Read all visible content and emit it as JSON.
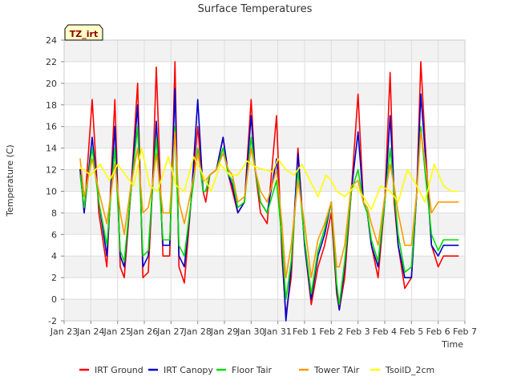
{
  "chart_data": {
    "type": "line",
    "title": "Surface Temperatures",
    "xlabel": "Time",
    "ylabel": "Temperature (C)",
    "site_label": "TZ_irt",
    "x_ticks": [
      "Jan 23",
      "Jan 24",
      "Jan 25",
      "Jan 26",
      "Jan 27",
      "Jan 28",
      "Jan 29",
      "Jan 30",
      "Jan 31",
      "Feb 1",
      "Feb 2",
      "Feb 3",
      "Feb 4",
      "Feb 5",
      "Feb 6",
      "Feb 7"
    ],
    "xlim": [
      0,
      15
    ],
    "ylim": [
      -2,
      24
    ],
    "y_ticks": [
      -2,
      0,
      2,
      4,
      6,
      8,
      10,
      12,
      14,
      16,
      18,
      20,
      22,
      24
    ],
    "grid": true,
    "legend_position": "bottom",
    "series": [
      {
        "name": "IRT Ground",
        "color": "#ff0000",
        "x": [
          0.6,
          0.75,
          1.05,
          1.3,
          1.6,
          1.9,
          2.1,
          2.25,
          2.5,
          2.75,
          2.95,
          3.15,
          3.3,
          3.45,
          3.7,
          3.95,
          4.15,
          4.3,
          4.5,
          4.75,
          5.0,
          5.2,
          5.3,
          5.45,
          5.7,
          5.95,
          6.15,
          6.3,
          6.5,
          6.75,
          7.0,
          7.15,
          7.35,
          7.6,
          7.95,
          8.15,
          8.3,
          8.5,
          8.75,
          9.0,
          9.25,
          9.5,
          9.75,
          10.0,
          10.2,
          10.3,
          10.5,
          10.75,
          11.0,
          11.2,
          11.35,
          11.5,
          11.75,
          12.0,
          12.2,
          12.35,
          12.5,
          12.75,
          13.0,
          13.2,
          13.35,
          13.5,
          13.75,
          14.0,
          14.2,
          14.35,
          14.5,
          14.75
        ],
        "y": [
          12.0,
          8.0,
          18.5,
          8.0,
          3.0,
          18.5,
          3.0,
          2.0,
          10.0,
          20.0,
          2.0,
          2.5,
          10.0,
          21.5,
          4.0,
          4.0,
          22.0,
          3.0,
          1.5,
          9.0,
          16.0,
          10.0,
          9.0,
          11.5,
          12.0,
          15.0,
          11.5,
          10.0,
          8.0,
          9.0,
          18.5,
          12.0,
          8.0,
          7.0,
          17.0,
          4.0,
          -1.5,
          2.0,
          14.0,
          5.0,
          -0.5,
          3.0,
          5.0,
          8.0,
          0.5,
          -1.0,
          2.0,
          10.0,
          19.0,
          9.0,
          8.0,
          5.0,
          2.0,
          9.0,
          21.0,
          9.0,
          5.0,
          1.0,
          2.0,
          10.0,
          22.0,
          15.0,
          5.0,
          3.0,
          4.0,
          4.0,
          4.0,
          4.0
        ]
      },
      {
        "name": "IRT Canopy",
        "color": "#0000cc",
        "x": [
          0.6,
          0.75,
          1.05,
          1.3,
          1.6,
          1.9,
          2.1,
          2.25,
          2.5,
          2.75,
          2.95,
          3.15,
          3.3,
          3.45,
          3.7,
          3.95,
          4.15,
          4.3,
          4.5,
          4.75,
          5.0,
          5.2,
          5.3,
          5.45,
          5.7,
          5.95,
          6.15,
          6.3,
          6.5,
          6.75,
          7.0,
          7.15,
          7.35,
          7.6,
          7.95,
          8.15,
          8.3,
          8.5,
          8.75,
          9.0,
          9.25,
          9.5,
          9.75,
          10.0,
          10.2,
          10.3,
          10.5,
          10.75,
          11.0,
          11.2,
          11.35,
          11.5,
          11.75,
          12.0,
          12.2,
          12.35,
          12.5,
          12.75,
          13.0,
          13.2,
          13.35,
          13.5,
          13.75,
          14.0,
          14.2,
          14.35,
          14.5,
          14.75
        ],
        "y": [
          12.0,
          8.0,
          15.0,
          9.0,
          4.0,
          16.0,
          4.0,
          3.0,
          10.0,
          18.0,
          3.0,
          4.0,
          10.0,
          16.5,
          5.0,
          5.0,
          19.5,
          4.0,
          3.0,
          9.0,
          18.5,
          10.0,
          10.0,
          11.5,
          12.0,
          15.0,
          11.5,
          10.5,
          8.0,
          9.0,
          17.0,
          12.0,
          9.0,
          8.0,
          13.0,
          5.0,
          -2.0,
          3.0,
          13.5,
          5.0,
          0.0,
          4.0,
          6.0,
          9.0,
          1.0,
          -1.0,
          3.0,
          10.0,
          15.5,
          9.0,
          8.0,
          5.0,
          3.0,
          9.0,
          17.0,
          10.0,
          5.0,
          2.0,
          2.0,
          10.0,
          19.0,
          14.0,
          5.0,
          4.0,
          5.0,
          5.0,
          5.0,
          5.0
        ]
      },
      {
        "name": "Floor Tair",
        "color": "#00dd00",
        "x": [
          0.6,
          0.75,
          1.05,
          1.3,
          1.6,
          1.9,
          2.1,
          2.25,
          2.5,
          2.75,
          2.95,
          3.15,
          3.3,
          3.45,
          3.7,
          3.95,
          4.15,
          4.3,
          4.5,
          4.75,
          5.0,
          5.2,
          5.3,
          5.45,
          5.7,
          5.95,
          6.15,
          6.3,
          6.5,
          6.75,
          7.0,
          7.15,
          7.35,
          7.6,
          7.95,
          8.15,
          8.3,
          8.5,
          8.75,
          9.0,
          9.25,
          9.5,
          9.75,
          10.0,
          10.2,
          10.3,
          10.5,
          10.75,
          11.0,
          11.2,
          11.35,
          11.5,
          11.75,
          12.0,
          12.2,
          12.35,
          12.5,
          12.75,
          13.0,
          13.2,
          13.35,
          13.5,
          13.75,
          14.0,
          14.2,
          14.35,
          14.5,
          14.75
        ],
        "y": [
          11.5,
          8.5,
          14.0,
          9.0,
          5.0,
          14.0,
          4.5,
          3.5,
          10.0,
          16.0,
          4.0,
          4.5,
          10.0,
          15.0,
          5.5,
          5.5,
          16.0,
          5.0,
          4.0,
          9.0,
          14.0,
          10.0,
          10.0,
          11.5,
          12.0,
          14.0,
          11.5,
          11.0,
          8.5,
          9.0,
          15.0,
          12.0,
          9.0,
          8.0,
          11.0,
          5.5,
          0.0,
          3.5,
          12.0,
          5.5,
          0.5,
          4.5,
          6.5,
          9.0,
          1.5,
          -0.5,
          3.5,
          10.0,
          12.0,
          9.0,
          8.0,
          5.5,
          3.5,
          9.0,
          14.0,
          10.0,
          6.0,
          2.5,
          3.0,
          10.0,
          16.0,
          12.0,
          6.0,
          4.5,
          5.5,
          5.5,
          5.5,
          5.5
        ]
      },
      {
        "name": "Tower TAir",
        "color": "#ff9900",
        "x": [
          0.6,
          0.75,
          1.05,
          1.3,
          1.6,
          1.9,
          2.1,
          2.25,
          2.5,
          2.75,
          2.95,
          3.15,
          3.3,
          3.45,
          3.7,
          3.95,
          4.15,
          4.3,
          4.5,
          4.75,
          5.0,
          5.2,
          5.3,
          5.45,
          5.7,
          5.95,
          6.15,
          6.3,
          6.5,
          6.75,
          7.0,
          7.15,
          7.35,
          7.6,
          7.95,
          8.15,
          8.3,
          8.5,
          8.75,
          9.0,
          9.25,
          9.5,
          9.75,
          10.0,
          10.2,
          10.3,
          10.5,
          10.75,
          11.0,
          11.2,
          11.35,
          11.5,
          11.75,
          12.0,
          12.2,
          12.35,
          12.5,
          12.75,
          13.0,
          13.2,
          13.35,
          13.5,
          13.75,
          14.0,
          14.2,
          14.35,
          14.5,
          14.75
        ],
        "y": [
          13.0,
          9.5,
          13.0,
          10.0,
          7.0,
          12.5,
          8.0,
          6.0,
          10.5,
          14.0,
          8.0,
          8.5,
          10.5,
          13.5,
          8.0,
          8.0,
          15.5,
          9.0,
          7.0,
          10.0,
          13.5,
          11.0,
          11.0,
          11.5,
          12.0,
          13.5,
          12.0,
          11.5,
          9.0,
          9.5,
          14.0,
          12.0,
          10.0,
          9.0,
          12.0,
          7.0,
          2.0,
          5.0,
          11.0,
          7.0,
          2.0,
          5.5,
          7.0,
          9.0,
          3.0,
          3.0,
          5.0,
          10.5,
          11.0,
          9.0,
          8.5,
          7.0,
          5.0,
          9.5,
          12.5,
          10.5,
          8.0,
          5.0,
          5.0,
          10.0,
          15.5,
          13.0,
          8.0,
          9.0,
          9.0,
          9.0,
          9.0,
          9.0
        ]
      },
      {
        "name": "TsoilD_2cm",
        "color": "#ffff00",
        "x": [
          0.6,
          1.0,
          1.35,
          1.7,
          2.0,
          2.3,
          2.6,
          2.9,
          3.2,
          3.5,
          3.9,
          4.2,
          4.5,
          4.85,
          5.2,
          5.5,
          5.85,
          6.2,
          6.5,
          6.85,
          7.2,
          7.5,
          7.8,
          8.0,
          8.3,
          8.6,
          8.9,
          9.2,
          9.5,
          9.8,
          10.0,
          10.2,
          10.5,
          10.9,
          11.2,
          11.5,
          11.85,
          12.2,
          12.5,
          12.85,
          13.2,
          13.5,
          13.85,
          14.2,
          14.5,
          14.75
        ],
        "y": [
          12.2,
          11.5,
          12.5,
          11.0,
          12.5,
          11.5,
          10.5,
          14.0,
          10.5,
          10.0,
          13.2,
          10.5,
          10.0,
          13.2,
          11.5,
          10.0,
          12.5,
          11.5,
          11.5,
          12.8,
          12.2,
          12.0,
          11.8,
          13.0,
          12.0,
          11.5,
          12.5,
          11.0,
          9.5,
          11.5,
          11.0,
          10.0,
          9.5,
          10.5,
          9.5,
          8.3,
          10.5,
          10.0,
          9.0,
          12.0,
          10.5,
          9.0,
          12.5,
          10.5,
          10.0,
          10.0
        ]
      }
    ]
  }
}
